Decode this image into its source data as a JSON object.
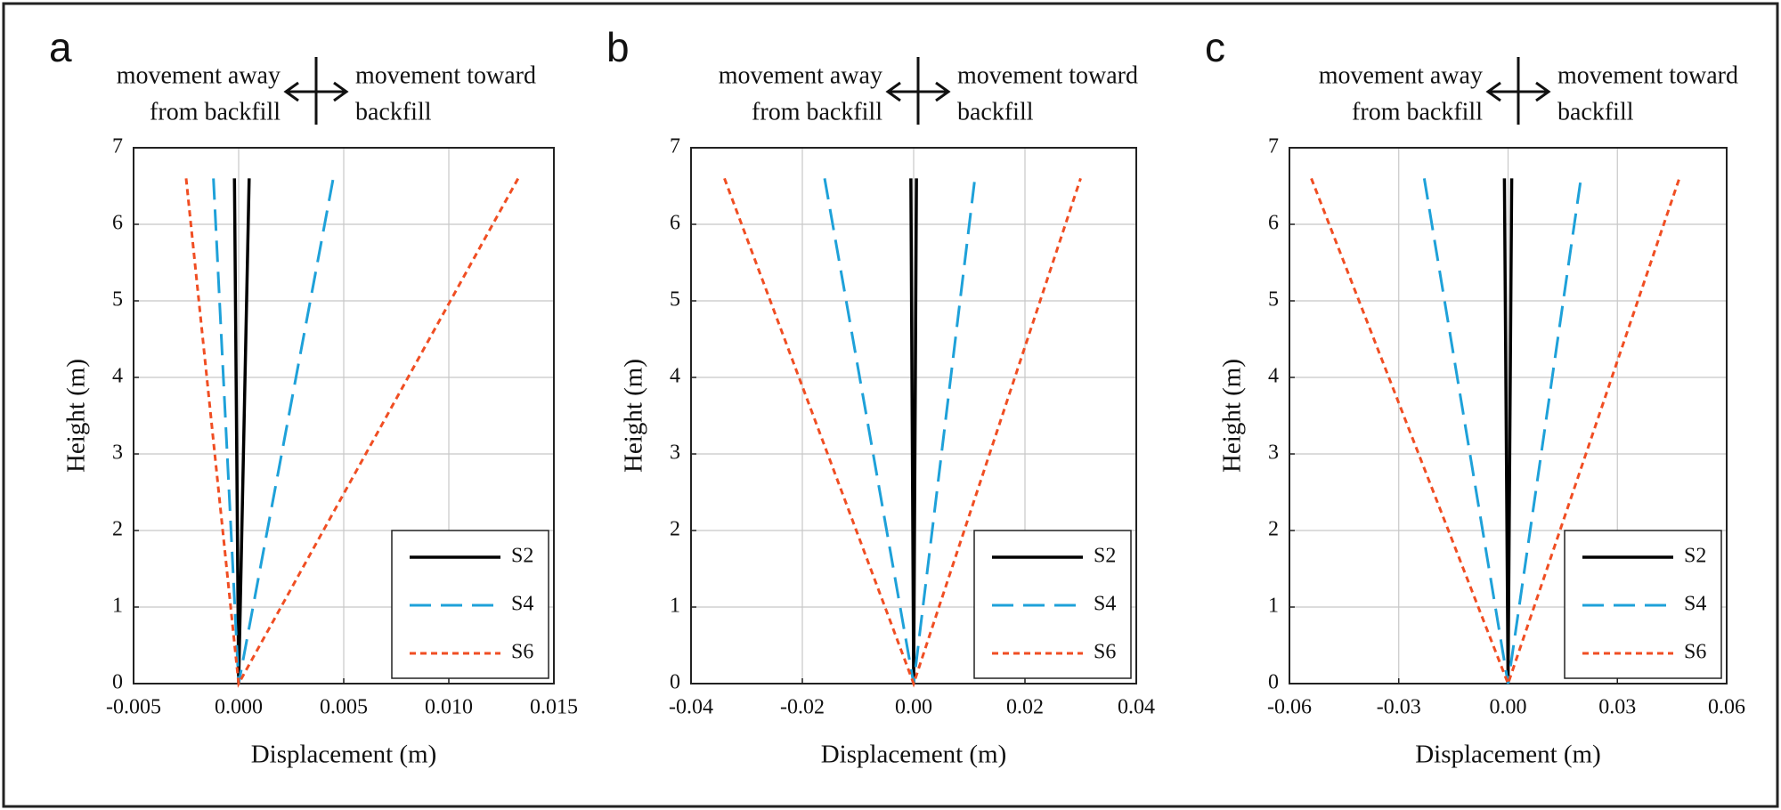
{
  "chart_data": [
    {
      "type": "line",
      "panel_label": "a",
      "annotation_left": [
        "movement away",
        "from backfill"
      ],
      "annotation_right": [
        "movement toward",
        "backfill"
      ],
      "x_label": "Displacement (m)",
      "y_label": "Height (m)",
      "xlim": [
        -0.005,
        0.015
      ],
      "ylim": [
        0,
        7
      ],
      "xticks": [
        -0.005,
        {
          "value": 0,
          "label": "0.000"
        },
        0.005,
        {
          "value": 0.01,
          "label": "0.010"
        },
        0.015
      ],
      "yticks": [
        0,
        1,
        2,
        3,
        4,
        5,
        6,
        7
      ],
      "grid": true,
      "legend": "lower right",
      "series": [
        {
          "name": "S2",
          "color": "#000000",
          "line_style": "solid",
          "x": [
            -0.0002,
            0,
            0.0005
          ],
          "values": [
            6.6,
            0,
            6.6
          ]
        },
        {
          "name": "S4",
          "color": "#1ea1d9",
          "line_style": "dashed",
          "x": [
            -0.0012,
            0,
            0.0045
          ],
          "values": [
            6.6,
            0,
            6.6
          ]
        },
        {
          "name": "S6",
          "color": "#f04e23",
          "line_style": "dotted",
          "x": [
            -0.0025,
            0,
            0.0133
          ],
          "values": [
            6.6,
            0,
            6.6
          ]
        }
      ]
    },
    {
      "type": "line",
      "panel_label": "b",
      "annotation_left": [
        "movement away",
        "from backfill"
      ],
      "annotation_right": [
        "movement toward",
        "backfill"
      ],
      "x_label": "Displacement (m)",
      "y_label": "Height (m)",
      "xlim": [
        -0.04,
        0.04
      ],
      "ylim": [
        0,
        7
      ],
      "xticks": [
        -0.04,
        -0.02,
        {
          "value": 0,
          "label": "0.00"
        },
        0.02,
        0.04
      ],
      "yticks": [
        0,
        1,
        2,
        3,
        4,
        5,
        6,
        7
      ],
      "grid": true,
      "legend": "lower right",
      "series": [
        {
          "name": "S2",
          "color": "#000000",
          "line_style": "solid",
          "x": [
            -0.0005,
            0,
            0.0005
          ],
          "values": [
            6.6,
            0,
            6.6
          ]
        },
        {
          "name": "S4",
          "color": "#1ea1d9",
          "line_style": "dashed",
          "x": [
            -0.016,
            0,
            0.011
          ],
          "values": [
            6.6,
            0,
            6.6
          ]
        },
        {
          "name": "S6",
          "color": "#f04e23",
          "line_style": "dotted",
          "x": [
            -0.034,
            0,
            0.03
          ],
          "values": [
            6.6,
            0,
            6.6
          ]
        }
      ]
    },
    {
      "type": "line",
      "panel_label": "c",
      "annotation_left": [
        "movement away",
        "from backfill"
      ],
      "annotation_right": [
        "movement toward",
        "backfill"
      ],
      "x_label": "Displacement (m)",
      "y_label": "Height (m)",
      "xlim": [
        -0.06,
        0.06
      ],
      "ylim": [
        0,
        7
      ],
      "xticks": [
        -0.06,
        -0.03,
        {
          "value": 0,
          "label": "0.00"
        },
        0.03,
        0.06
      ],
      "yticks": [
        0,
        1,
        2,
        3,
        4,
        5,
        6,
        7
      ],
      "grid": true,
      "legend": "lower right",
      "series": [
        {
          "name": "S2",
          "color": "#000000",
          "line_style": "solid",
          "x": [
            -0.001,
            0,
            0.001
          ],
          "values": [
            6.6,
            0,
            6.6
          ]
        },
        {
          "name": "S4",
          "color": "#1ea1d9",
          "line_style": "dashed",
          "x": [
            -0.023,
            0,
            0.02
          ],
          "values": [
            6.6,
            0,
            6.6
          ]
        },
        {
          "name": "S6",
          "color": "#f04e23",
          "line_style": "dotted",
          "x": [
            -0.054,
            0,
            0.047
          ],
          "values": [
            6.6,
            0,
            6.6
          ]
        }
      ]
    }
  ]
}
